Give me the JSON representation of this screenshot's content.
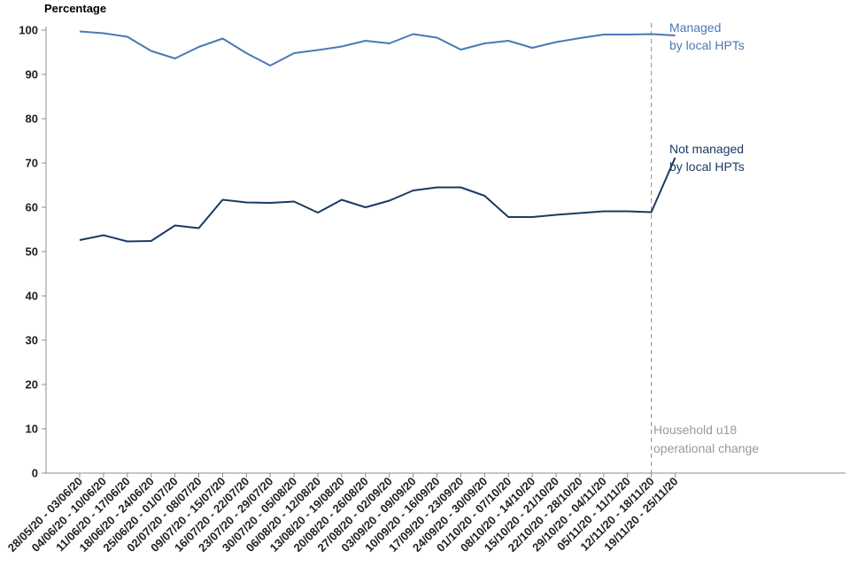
{
  "chart_data": {
    "type": "line",
    "ylabel": "Percentage",
    "ylim": [
      0,
      100
    ],
    "yticks": [
      0,
      10,
      20,
      30,
      40,
      50,
      60,
      70,
      80,
      90,
      100
    ],
    "categories": [
      "28/05/20 - 03/06/20",
      "04/06/20 - 10/06/20",
      "11/06/20 - 17/06/20",
      "18/06/20 - 24/06/20",
      "25/06/20 - 01/07/20",
      "02/07/20 - 08/07/20",
      "09/07/20 - 15/07/20",
      "16/07/20 - 22/07/20",
      "23/07/20 - 29/07/20",
      "30/07/20 - 05/08/20",
      "06/08/20 - 12/08/20",
      "13/08/20 - 19/08/20",
      "20/08/20 - 26/08/20",
      "27/08/20 - 02/09/20",
      "03/09/20 - 09/09/20",
      "10/09/20 - 16/09/20",
      "17/09/20 - 23/09/20",
      "24/09/20 - 30/09/20",
      "01/10/20 - 07/10/20",
      "08/10/20 - 14/10/20",
      "15/10/20 - 21/10/20",
      "22/10/20 - 28/10/20",
      "29/10/20 - 04/11/20",
      "05/11/20 - 11/11/20",
      "12/11/20 - 18/11/20",
      "19/11/20 - 25/11/20"
    ],
    "series": [
      {
        "name": "Managed by local HPTs",
        "label_lines": [
          "Managed",
          "by local HPTs"
        ],
        "color": "#4a79b5",
        "values": [
          99.7,
          99.3,
          98.5,
          95.3,
          93.6,
          96.2,
          98.1,
          94.8,
          92.0,
          94.8,
          95.5,
          96.3,
          97.6,
          97.0,
          99.1,
          98.3,
          95.6,
          97.0,
          97.6,
          96.0,
          97.3,
          98.2,
          99.0,
          99.0,
          99.1,
          98.8
        ]
      },
      {
        "name": "Not managed by local HPTs",
        "label_lines": [
          "Not managed",
          "by local HPTs"
        ],
        "color": "#1a3a63",
        "values": [
          52.6,
          53.7,
          52.3,
          52.4,
          55.9,
          55.3,
          61.7,
          61.1,
          61.0,
          61.3,
          58.8,
          61.7,
          60.0,
          61.5,
          63.8,
          64.5,
          64.5,
          62.6,
          57.8,
          57.8,
          58.3,
          58.7,
          59.1,
          59.1,
          58.9,
          71.2
        ]
      }
    ],
    "annotation": {
      "text_lines": [
        "Household u18",
        "operational change"
      ],
      "at_category_index": 24,
      "color": "#9a9a9a"
    }
  }
}
